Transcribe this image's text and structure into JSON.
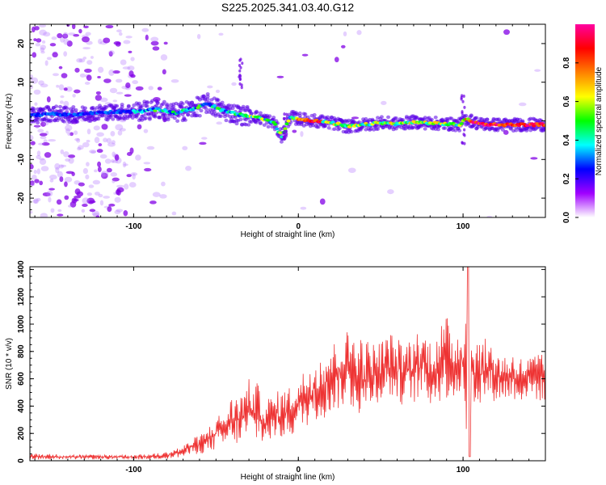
{
  "title": "S225.2025.341.03.40.G12",
  "chart_data": [
    {
      "type": "heatmap",
      "name": "spectrogram",
      "xlabel": "Height of straight line (km)",
      "ylabel": "Frequency (Hz)",
      "xlim": [
        -163,
        150
      ],
      "ylim": [
        -25,
        25
      ],
      "xticks": [
        -100,
        0,
        100
      ],
      "xtick_labels": [
        "-100",
        "0",
        "100"
      ],
      "yticks": [
        20,
        10,
        0,
        -10,
        -20
      ],
      "ytick_labels": [
        "20",
        "10",
        "0",
        "-10",
        "-20"
      ],
      "colorbar": {
        "label": "Normalized spectral amplitude",
        "range": [
          0,
          1
        ],
        "ticks": [
          0.0,
          0.2,
          0.4,
          0.6,
          0.8
        ],
        "tick_labels": [
          "0.0",
          "0.2",
          "0.4",
          "0.6",
          "0.8"
        ],
        "colors": [
          "#ffffff",
          "#a000ff",
          "#0000ff",
          "#00ffff",
          "#00ff00",
          "#ffff00",
          "#ff8000",
          "#ff0000",
          "#ff00a0"
        ]
      },
      "signal_track": [
        {
          "x": -163,
          "y": 1.2
        },
        {
          "x": -150,
          "y": 2.0
        },
        {
          "x": -140,
          "y": 1.5
        },
        {
          "x": -130,
          "y": 1.8
        },
        {
          "x": -120,
          "y": 2.2
        },
        {
          "x": -95,
          "y": 2.5
        },
        {
          "x": -85,
          "y": 3.0
        },
        {
          "x": -75,
          "y": 2.0
        },
        {
          "x": -65,
          "y": 3.0
        },
        {
          "x": -55,
          "y": 4.5
        },
        {
          "x": -45,
          "y": 2.5
        },
        {
          "x": -35,
          "y": 1.5
        },
        {
          "x": -25,
          "y": 1.0
        },
        {
          "x": -15,
          "y": -0.5
        },
        {
          "x": -10,
          "y": -4.0
        },
        {
          "x": -7,
          "y": -1.0
        },
        {
          "x": -5,
          "y": 1.0
        },
        {
          "x": 0,
          "y": 0.5
        },
        {
          "x": 10,
          "y": 0.0
        },
        {
          "x": 20,
          "y": -0.5
        },
        {
          "x": 30,
          "y": -1.5
        },
        {
          "x": 40,
          "y": -1.0
        },
        {
          "x": 50,
          "y": -0.5
        },
        {
          "x": 60,
          "y": -0.8
        },
        {
          "x": 70,
          "y": -0.3
        },
        {
          "x": 80,
          "y": -0.6
        },
        {
          "x": 90,
          "y": -0.8
        },
        {
          "x": 98,
          "y": -1.0
        },
        {
          "x": 102,
          "y": 0.5
        },
        {
          "x": 110,
          "y": -0.8
        },
        {
          "x": 120,
          "y": -1.0
        },
        {
          "x": 130,
          "y": -1.0
        },
        {
          "x": 140,
          "y": -1.0
        },
        {
          "x": 148,
          "y": -1.0
        }
      ]
    },
    {
      "type": "line",
      "name": "snr",
      "xlabel": "Height of straight line (km)",
      "ylabel": "SNR (10 * v/v)",
      "xlim": [
        -163,
        150
      ],
      "ylim": [
        0,
        1420
      ],
      "xticks": [
        -100,
        0,
        100
      ],
      "xtick_labels": [
        "-100",
        "0",
        "100"
      ],
      "yticks": [
        0,
        200,
        400,
        600,
        800,
        1000,
        1200,
        1400
      ],
      "ytick_labels": [
        "0",
        "200",
        "400",
        "600",
        "800",
        "1000",
        "1200",
        "1400"
      ],
      "color": "#ee3333",
      "x": [
        -163,
        -150,
        -140,
        -130,
        -120,
        -110,
        -100,
        -90,
        -80,
        -75,
        -70,
        -65,
        -60,
        -55,
        -50,
        -45,
        -40,
        -35,
        -30,
        -25,
        -20,
        -15,
        -10,
        -5,
        0,
        5,
        10,
        15,
        20,
        25,
        30,
        35,
        40,
        45,
        50,
        55,
        60,
        65,
        70,
        75,
        80,
        85,
        90,
        95,
        100,
        103,
        105,
        110,
        115,
        120,
        125,
        130,
        135,
        140,
        145,
        150
      ],
      "envelope_max": [
        55,
        50,
        45,
        45,
        45,
        45,
        45,
        50,
        65,
        90,
        110,
        160,
        190,
        240,
        330,
        360,
        480,
        500,
        600,
        570,
        450,
        500,
        520,
        550,
        600,
        700,
        750,
        820,
        850,
        920,
        960,
        980,
        900,
        870,
        880,
        950,
        900,
        870,
        950,
        960,
        900,
        980,
        1060,
        950,
        1000,
        1420,
        960,
        880,
        900,
        820,
        780,
        800,
        760,
        760,
        800,
        760
      ],
      "envelope_min": [
        10,
        10,
        10,
        10,
        10,
        10,
        10,
        10,
        15,
        20,
        25,
        40,
        50,
        60,
        80,
        100,
        110,
        120,
        150,
        130,
        120,
        150,
        160,
        170,
        220,
        250,
        300,
        300,
        350,
        380,
        400,
        350,
        300,
        420,
        430,
        460,
        420,
        400,
        420,
        460,
        400,
        420,
        450,
        430,
        500,
        20,
        400,
        420,
        450,
        430,
        440,
        450,
        430,
        460,
        440,
        420
      ]
    }
  ]
}
